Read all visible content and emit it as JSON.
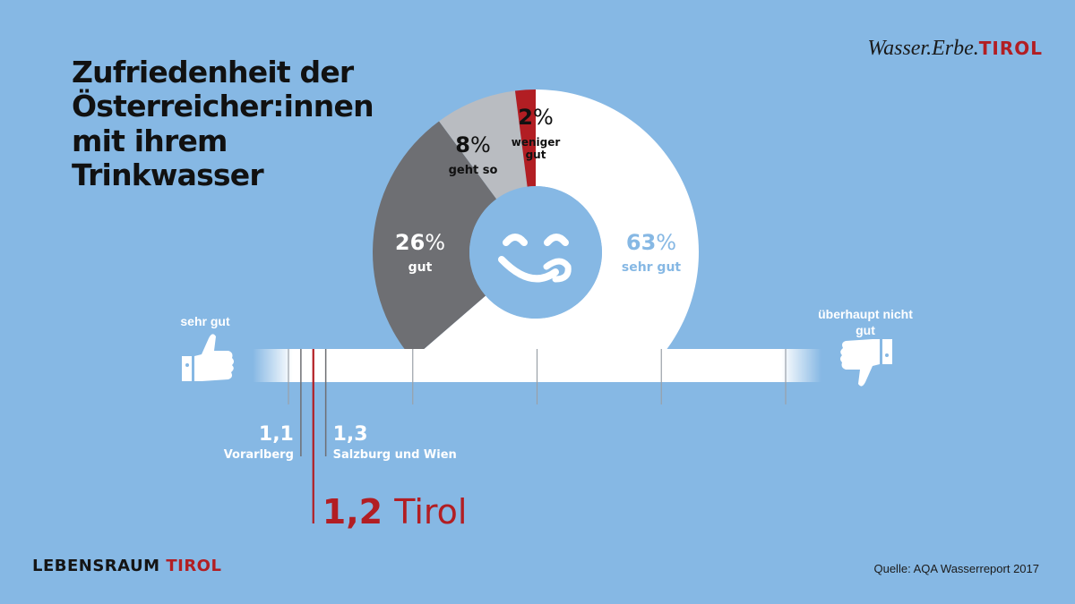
{
  "title_lines": [
    "Zufriedenheit der",
    "Österreicher:innen",
    "mit ihrem",
    "Trinkwasser"
  ],
  "brand_top": {
    "part1": "Wasser.Erbe.",
    "part2": "TIROL"
  },
  "brand_bottom": {
    "part1": "LEBENSRAUM ",
    "part2": "TIROL"
  },
  "source": "Quelle: AQA Wasserreport 2017",
  "colors": {
    "background": "#86b8e4",
    "sehr_gut": "#ffffff",
    "gut": "#6e6f73",
    "geht_so": "#b9bcc1",
    "weniger_gut": "#b21e23",
    "accent": "#b21e23"
  },
  "icons": {
    "center": "smiley-tongue-icon",
    "left": "thumbs-up-icon",
    "right": "thumbs-down-icon"
  },
  "chart_data": [
    {
      "type": "pie",
      "variant": "donut",
      "slices": [
        {
          "label": "sehr gut",
          "value": 63,
          "display": "63",
          "unit": "%"
        },
        {
          "label": "gut",
          "value": 26,
          "display": "26",
          "unit": "%"
        },
        {
          "label": "geht so",
          "value": 8,
          "display": "8",
          "unit": "%"
        },
        {
          "label": "weniger gut",
          "value": 2,
          "display": "2",
          "unit": "%"
        }
      ]
    },
    {
      "type": "scale",
      "range": [
        1,
        5
      ],
      "ticks": [
        1,
        2,
        3,
        4,
        5
      ],
      "left_label": "sehr gut",
      "right_label": "überhaupt nicht gut",
      "markers": [
        {
          "region": "Vorarlberg",
          "value": 1.1,
          "display": "1,1",
          "color": "#6e6f73"
        },
        {
          "region": "Tirol",
          "value": 1.2,
          "display": "1,2",
          "color": "#b21e23",
          "highlight": true
        },
        {
          "region": "Salzburg und Wien",
          "value": 1.3,
          "display": "1,3",
          "color": "#6e6f73"
        }
      ]
    }
  ]
}
